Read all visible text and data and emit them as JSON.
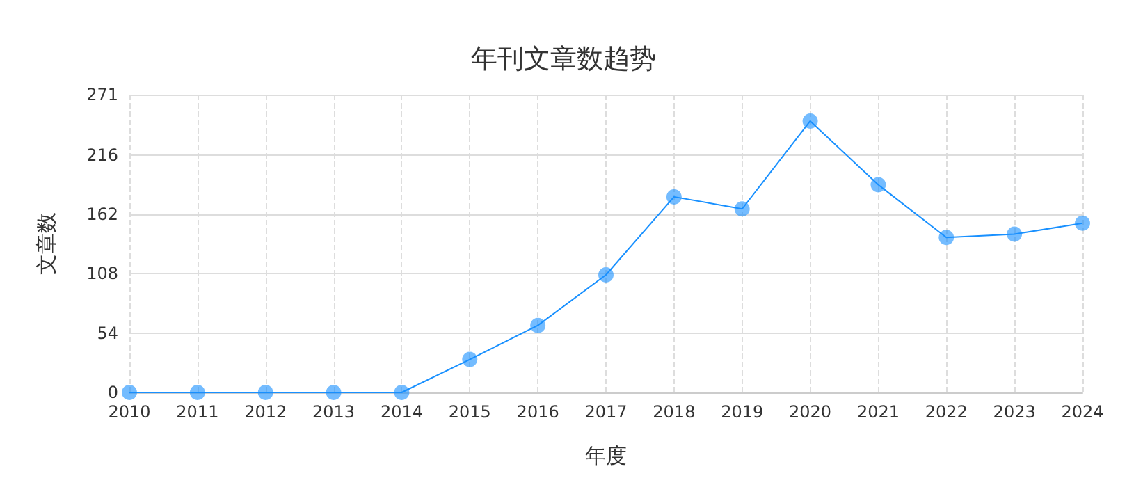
{
  "chart_data": {
    "type": "line",
    "title": "年刊文章数趋势",
    "xlabel": "年度",
    "ylabel": "文章数",
    "categories": [
      "2010",
      "2011",
      "2012",
      "2013",
      "2014",
      "2015",
      "2016",
      "2017",
      "2018",
      "2019",
      "2020",
      "2021",
      "2022",
      "2023",
      "2024"
    ],
    "series": [
      {
        "color": "#1890ff",
        "values": [
          0,
          0,
          0,
          0,
          0,
          30,
          61,
          107,
          178,
          167,
          247,
          189,
          141,
          144,
          154
        ]
      }
    ],
    "ylim": [
      0,
      271
    ],
    "yticks": [
      0,
      54,
      108,
      162,
      216,
      271
    ],
    "grid": true,
    "marker": "circle",
    "line_style": "solid"
  }
}
